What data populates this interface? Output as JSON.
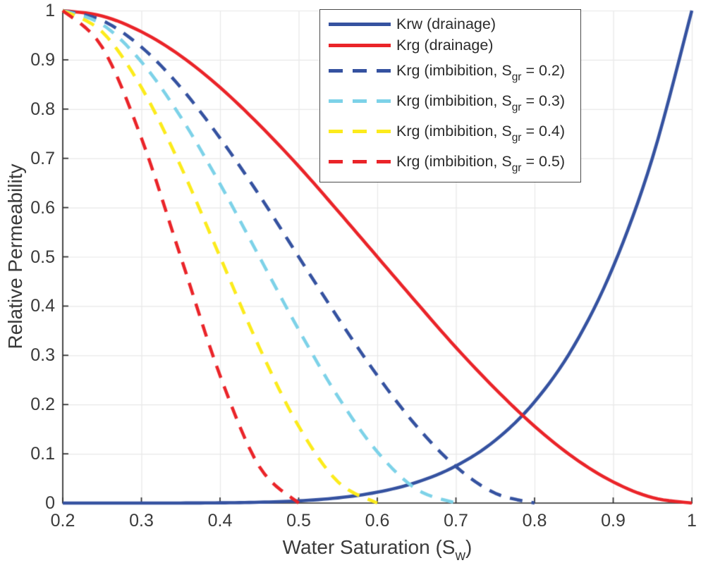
{
  "figure": {
    "background": "#FFFFFF"
  },
  "axes": {
    "xlabel": {
      "pre": "Water Saturation (S",
      "sub": "w",
      "post": ")"
    },
    "ylabel": "Relative Permeability"
  },
  "legend": {
    "entries": [
      {
        "pre": "Krw (drainage)",
        "sub": "",
        "post": "",
        "color": "#3552A0",
        "dash": false
      },
      {
        "pre": "Krg (drainage)",
        "sub": "",
        "post": "",
        "color": "#EA2429",
        "dash": false
      },
      {
        "pre": "Krg (imbibition, S",
        "sub": "gr",
        "post": " = 0.2)",
        "color": "#3552A0",
        "dash": true
      },
      {
        "pre": "Krg (imbibition, S",
        "sub": "gr",
        "post": " = 0.3)",
        "color": "#7DD2E8",
        "dash": true
      },
      {
        "pre": "Krg (imbibition, S",
        "sub": "gr",
        "post": " = 0.4)",
        "color": "#FCEB1C",
        "dash": true
      },
      {
        "pre": "Krg (imbibition, S",
        "sub": "gr",
        "post": " = 0.5)",
        "color": "#EA2429",
        "dash": true
      }
    ]
  },
  "chart_data": {
    "type": "line",
    "title": "",
    "xlabel": "Water Saturation (Sw)",
    "ylabel": "Relative Permeability",
    "xlim": [
      0.2,
      1.0
    ],
    "ylim": [
      0,
      1
    ],
    "grid": true,
    "legend_position": "upper center-right",
    "grid_color": "#E7E7E7",
    "axis_color": "#2B2B2B",
    "x_tick_labels": [
      "0.2",
      "0.3",
      "0.4",
      "0.5",
      "0.6",
      "0.7",
      "0.8",
      "0.9",
      "1"
    ],
    "x_tick_values": [
      0.2,
      0.3,
      0.4,
      0.5,
      0.6,
      0.7,
      0.8,
      0.9,
      1.0
    ],
    "y_tick_labels": [
      "0",
      "0.1",
      "0.2",
      "0.3",
      "0.4",
      "0.5",
      "0.6",
      "0.7",
      "0.8",
      "0.9",
      "1"
    ],
    "y_tick_values": [
      0,
      0.1,
      0.2,
      0.3,
      0.4,
      0.5,
      0.6,
      0.7,
      0.8,
      0.9,
      1.0
    ],
    "series": [
      {
        "name": "Krw (drainage)",
        "color": "#3552A0",
        "style": "solid",
        "x": [
          0.2,
          0.25,
          0.3,
          0.35,
          0.4,
          0.45,
          0.5,
          0.55,
          0.6,
          0.65,
          0.7,
          0.75,
          0.8,
          0.85,
          0.9,
          0.95,
          1.0
        ],
        "y": [
          0,
          0,
          0.0001,
          0.0001,
          0.0005,
          0.0017,
          0.0045,
          0.0106,
          0.0221,
          0.0422,
          0.0754,
          0.1273,
          0.2056,
          0.319,
          0.48,
          0.7013,
          1.0
        ]
      },
      {
        "name": "Krg (drainage)",
        "color": "#EA2429",
        "style": "solid",
        "x": [
          0.2,
          0.25,
          0.3,
          0.35,
          0.4,
          0.45,
          0.5,
          0.55,
          0.6,
          0.65,
          0.7,
          0.75,
          0.8,
          0.85,
          0.9,
          0.95,
          1.0
        ],
        "y": [
          1.0,
          0.989,
          0.957,
          0.908,
          0.844,
          0.768,
          0.684,
          0.593,
          0.5,
          0.407,
          0.316,
          0.232,
          0.156,
          0.092,
          0.043,
          0.011,
          0
        ]
      },
      {
        "name": "Krg (imbibition, Sgr = 0.2)",
        "color": "#3552A0",
        "style": "dashed",
        "x": [
          0.2,
          0.25,
          0.3,
          0.35,
          0.4,
          0.45,
          0.5,
          0.55,
          0.6,
          0.65,
          0.7,
          0.75,
          0.8
        ],
        "y": [
          1.0,
          0.98,
          0.926,
          0.844,
          0.741,
          0.625,
          0.5,
          0.376,
          0.259,
          0.156,
          0.074,
          0.02,
          0
        ]
      },
      {
        "name": "Krg (imbibition, Sgr = 0.3)",
        "color": "#7DD2E8",
        "style": "dashed",
        "x": [
          0.2,
          0.25,
          0.3,
          0.35,
          0.4,
          0.45,
          0.5,
          0.55,
          0.6,
          0.65,
          0.7
        ],
        "y": [
          1.0,
          0.972,
          0.896,
          0.784,
          0.648,
          0.5,
          0.352,
          0.216,
          0.104,
          0.028,
          0
        ]
      },
      {
        "name": "Krg (imbibition, Sgr = 0.4)",
        "color": "#FCEB1C",
        "style": "dashed",
        "x": [
          0.2,
          0.25,
          0.3,
          0.35,
          0.4,
          0.45,
          0.5,
          0.55,
          0.6
        ],
        "y": [
          1.0,
          0.957,
          0.844,
          0.684,
          0.5,
          0.316,
          0.156,
          0.043,
          0
        ]
      },
      {
        "name": "Krg (imbibition, Sgr = 0.5)",
        "color": "#EA2429",
        "style": "dashed",
        "x": [
          0.2,
          0.25,
          0.3,
          0.35,
          0.4,
          0.45,
          0.5
        ],
        "y": [
          1.0,
          0.926,
          0.741,
          0.5,
          0.259,
          0.074,
          0
        ]
      }
    ]
  }
}
